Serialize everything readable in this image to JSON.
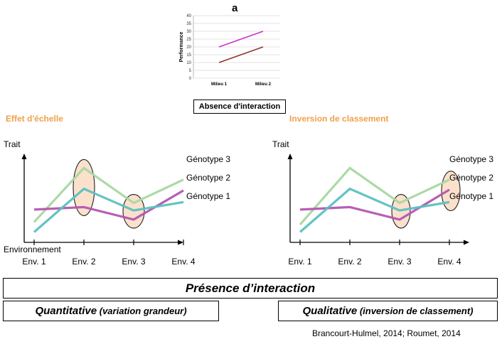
{
  "top_chart": {
    "title": "a",
    "caption": "Absence d'interaction"
  },
  "quant_chart_title": "Effet d'échelle",
  "qual_chart_title": "Inversion de classement",
  "presence_label": "Présence d’interaction",
  "quantitative": {
    "main": "Quantitative",
    "paren": " (variation grandeur)"
  },
  "qualitative": {
    "main": "Qualitative",
    "paren": " (inversion de classement)"
  },
  "citation": "Brancourt-Hulmel, 2014; Roumet, 2014",
  "chart_data": [
    {
      "type": "line",
      "title": "a",
      "categories": [
        "Milieu 1",
        "Milieu 2"
      ],
      "ylabel": "Performance",
      "ylim": [
        0,
        40
      ],
      "yticks": [
        0,
        5,
        10,
        15,
        20,
        25,
        30,
        35,
        40
      ],
      "series": [
        {
          "color": "#cc33cc",
          "values": [
            20,
            30
          ]
        },
        {
          "color": "#993333",
          "values": [
            10,
            20
          ]
        }
      ]
    },
    {
      "type": "line",
      "title": "Effet d'échelle",
      "categories": [
        "Env. 1",
        "Env. 2",
        "Env. 3",
        "Env. 4"
      ],
      "ylabel": "Trait",
      "xlabel": "Environnement",
      "ylim": [
        0,
        10
      ],
      "series": [
        {
          "name": "Génotype 3",
          "color": "#a8d8a0",
          "values": [
            1.5,
            8.0,
            3.8,
            6.6
          ]
        },
        {
          "name": "Génotype 2",
          "color": "#b455b0",
          "values": [
            3.0,
            3.3,
            1.8,
            5.3
          ]
        },
        {
          "name": "Génotype 1",
          "color": "#5cc0c0",
          "values": [
            0.3,
            5.5,
            2.9,
            3.9
          ]
        }
      ],
      "highlights": [
        "Env. 2",
        "Env. 3"
      ]
    },
    {
      "type": "line",
      "title": "Inversion de classement",
      "categories": [
        "Env. 1",
        "Env. 2",
        "Env. 3",
        "Env. 4"
      ],
      "ylabel": "Trait",
      "ylim": [
        0,
        10
      ],
      "series": [
        {
          "name": "Génotype 3",
          "color": "#a8d8a0",
          "values": [
            1.2,
            8.0,
            3.8,
            6.6
          ]
        },
        {
          "name": "Génotype 2",
          "color": "#b455b0",
          "values": [
            3.0,
            3.3,
            1.8,
            5.4
          ]
        },
        {
          "name": "Génotype 1",
          "color": "#5cc0c0",
          "values": [
            0.3,
            5.5,
            2.9,
            3.9
          ]
        }
      ],
      "highlights": [
        "Env. 3",
        "Env. 4"
      ]
    }
  ]
}
